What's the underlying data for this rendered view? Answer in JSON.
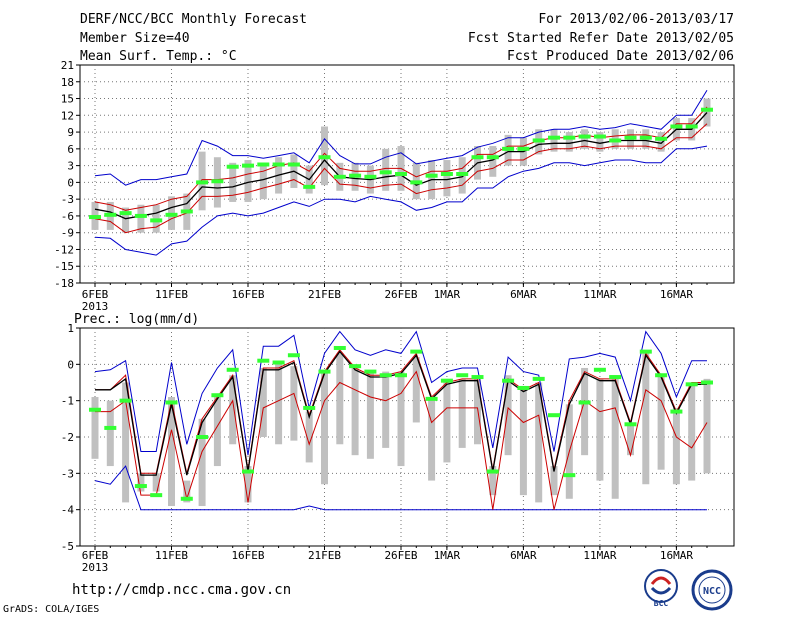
{
  "header": {
    "title": "DERF/NCC/BCC Monthly Forecast",
    "member_size": "Member Size=40",
    "variable": "Mean Surf. Temp.: °C",
    "period": "For 2013/02/06-2013/03/17",
    "refer_date": "Fcst Started Refer Date 2013/02/05",
    "produced_date": "Fcst Produced Date 2013/02/06"
  },
  "footer": {
    "url": "http://cmdp.ncc.cma.gov.cn",
    "credit": "GrADS: COLA/IGES",
    "logo1": "BCC",
    "logo2": "NCC"
  },
  "chart_data": [
    {
      "type": "line",
      "title": "Mean Surf. Temp.: °C",
      "xlabel": "",
      "ylabel": "°C",
      "ylim": [
        -18,
        21
      ],
      "yticks": [
        -18,
        -15,
        -12,
        -9,
        -6,
        -3,
        0,
        3,
        6,
        9,
        12,
        15,
        18,
        21
      ],
      "xtick_labels": [
        "6FEB",
        "11FEB",
        "16FEB",
        "21FEB",
        "26FEB",
        "1MAR",
        "6MAR",
        "11MAR",
        "16MAR"
      ],
      "xtick_days": [
        0,
        5,
        10,
        15,
        20,
        23,
        28,
        33,
        38
      ],
      "year_label": "2013",
      "series": [
        {
          "name": "max",
          "color": "#0000cc",
          "values": [
            1.2,
            1.5,
            -0.5,
            0.5,
            0.5,
            1,
            1.5,
            7.5,
            6.5,
            4.8,
            4.8,
            4.3,
            4.8,
            5.3,
            3.5,
            7.8,
            4.8,
            3.3,
            3.3,
            4.5,
            5.3,
            3.3,
            3.8,
            4.3,
            4.8,
            6.3,
            7,
            8,
            8,
            9,
            9.5,
            9.5,
            10,
            9.5,
            9.8,
            10.5,
            10,
            9.5,
            12,
            12,
            16.5
          ]
        },
        {
          "name": "upper",
          "color": "#cc0000",
          "values": [
            -3.5,
            -4,
            -5,
            -4.5,
            -4,
            -3,
            -2.5,
            0.5,
            0.5,
            0.8,
            1.5,
            2,
            3,
            3.5,
            2,
            5.2,
            2.5,
            2,
            2,
            2.5,
            2.5,
            1,
            2,
            2,
            2.5,
            5,
            5,
            6.5,
            6.5,
            7.5,
            8,
            8,
            8.5,
            8,
            8.3,
            8.5,
            8.5,
            8,
            10.5,
            10.5,
            13.5
          ]
        },
        {
          "name": "mean",
          "color": "#000000",
          "values": [
            -4.8,
            -5.3,
            -6.5,
            -6,
            -5.5,
            -4.5,
            -3.8,
            -0.8,
            -1,
            -0.8,
            0,
            0.5,
            1.3,
            2,
            0.5,
            4,
            1,
            0.7,
            0.5,
            1,
            1.3,
            -0.5,
            0.5,
            0.5,
            1,
            3.5,
            4,
            5.5,
            5.5,
            6.8,
            7,
            7,
            7.5,
            7,
            7.5,
            7.5,
            7.5,
            7,
            9.5,
            9.5,
            12.5
          ]
        },
        {
          "name": "lower",
          "color": "#cc0000",
          "values": [
            -6.5,
            -7,
            -9,
            -8.3,
            -8,
            -6.5,
            -5.5,
            -2.5,
            -2.5,
            -2.3,
            -1.8,
            -1,
            -0.3,
            0.5,
            -1,
            2.5,
            -0.3,
            -0.5,
            -1,
            -0.5,
            -0.3,
            -2,
            -1.3,
            -1,
            -0.5,
            2,
            2.5,
            4,
            4,
            5.5,
            6,
            6,
            6.5,
            6,
            6.5,
            6.5,
            6.5,
            6,
            8,
            8,
            10.5
          ]
        },
        {
          "name": "min",
          "color": "#0000cc",
          "values": [
            -9.8,
            -10,
            -12,
            -12.5,
            -13,
            -11,
            -10.5,
            -8,
            -6,
            -5.5,
            -6,
            -5.5,
            -4.5,
            -3.5,
            -4.3,
            -3,
            -3,
            -3.5,
            -2.5,
            -3,
            -3.5,
            -5,
            -4.5,
            -3.5,
            -3.5,
            -1,
            -1,
            1,
            2,
            2.5,
            3.5,
            3.5,
            3,
            3.5,
            4,
            4,
            3.5,
            3.5,
            6,
            6,
            6.5
          ]
        },
        {
          "name": "bars",
          "color": "#c0c0c0",
          "low": [
            -8.5,
            -8.5,
            -9,
            -9,
            -9,
            -8.5,
            -8.5,
            -5,
            -4.5,
            -3.5,
            -3.5,
            -3,
            -2,
            -1,
            -2,
            -0.5,
            -1.5,
            -1.5,
            -2,
            -1.5,
            -1.5,
            -3,
            -3,
            -2.5,
            -2,
            0.5,
            1,
            3,
            3,
            5,
            5.5,
            5.5,
            6,
            5.5,
            6,
            6,
            6,
            5.5,
            7.5,
            7.5,
            10
          ],
          "high": [
            -3.5,
            -3.5,
            -4.5,
            -4,
            -4,
            -2.5,
            -2,
            5.5,
            4.5,
            3.5,
            4,
            3.5,
            4.5,
            5,
            3,
            10,
            3.5,
            3.5,
            3,
            6,
            6.5,
            3.5,
            4,
            4,
            4.5,
            6.5,
            6.5,
            8.5,
            8,
            9.5,
            9.5,
            9,
            9.5,
            9,
            9.5,
            9.5,
            9.5,
            9,
            11.5,
            11.5,
            15
          ]
        },
        {
          "name": "obs",
          "color": "#33ff33",
          "values": [
            -6.2,
            -5.8,
            -5.5,
            -6,
            -6.8,
            -5.8,
            -5.2,
            0,
            0.2,
            2.8,
            3,
            3.2,
            3.2,
            3.2,
            -0.8,
            4.5,
            1,
            1.2,
            1,
            1.8,
            1.5,
            0,
            1.2,
            1.5,
            1.5,
            4.5,
            4.5,
            6,
            6,
            7.5,
            8,
            8,
            8.2,
            8.2,
            7.5,
            8,
            8,
            7.8,
            10,
            10,
            13
          ]
        }
      ]
    },
    {
      "type": "line",
      "title": "Prec.: log(mm/d)",
      "xlabel": "",
      "ylabel": "log(mm/d)",
      "ylim": [
        -5,
        1
      ],
      "yticks": [
        -5,
        -4,
        -3,
        -2,
        -1,
        0,
        1
      ],
      "xtick_labels": [
        "6FEB",
        "11FEB",
        "16FEB",
        "21FEB",
        "26FEB",
        "1MAR",
        "6MAR",
        "11MAR",
        "16MAR"
      ],
      "xtick_days": [
        0,
        5,
        10,
        15,
        20,
        23,
        28,
        33,
        38
      ],
      "year_label": "2013",
      "series": [
        {
          "name": "max",
          "color": "#0000cc",
          "values": [
            -0.2,
            -0.15,
            0.1,
            -2.4,
            -2.4,
            0.05,
            -2.2,
            -0.8,
            -0.1,
            0.4,
            -2.5,
            0.5,
            0.5,
            0.8,
            -1.2,
            0.3,
            0.9,
            0.4,
            0.25,
            0.4,
            0.3,
            0.9,
            -0.5,
            -0.2,
            -0.1,
            -0.1,
            -2.3,
            0.2,
            -0.2,
            -0.3,
            -2.4,
            0.15,
            0.2,
            0.3,
            0.2,
            -1.0,
            0.9,
            0.3,
            -0.9,
            0.1,
            0.1
          ]
        },
        {
          "name": "upper",
          "color": "#cc0000",
          "values": [
            -0.7,
            -0.7,
            -0.3,
            -3.0,
            -3.0,
            -1.0,
            -3.0,
            -1.5,
            -0.9,
            -0.3,
            -2.9,
            -0.1,
            -0.1,
            0.1,
            -1.4,
            -0.2,
            0.4,
            -0.1,
            -0.3,
            -0.3,
            -0.2,
            0.3,
            -0.9,
            -0.5,
            -0.4,
            -0.4,
            -2.9,
            -0.4,
            -0.7,
            -0.5,
            -2.9,
            -1.0,
            -0.2,
            -0.4,
            -0.4,
            -1.6,
            0.3,
            -0.3,
            -1.3,
            -0.5,
            -0.5
          ]
        },
        {
          "name": "mean",
          "color": "#000000",
          "values": [
            -0.7,
            -0.7,
            -0.4,
            -3.05,
            -3.05,
            -1.1,
            -3.05,
            -1.6,
            -0.95,
            -0.35,
            -2.95,
            -0.15,
            -0.15,
            0.05,
            -1.45,
            -0.25,
            0.35,
            -0.15,
            -0.35,
            -0.35,
            -0.25,
            0.25,
            -0.95,
            -0.55,
            -0.45,
            -0.45,
            -2.95,
            -0.45,
            -0.75,
            -0.55,
            -2.95,
            -1.1,
            -0.25,
            -0.45,
            -0.45,
            -1.65,
            0.25,
            -0.35,
            -1.35,
            -0.55,
            -0.55
          ]
        },
        {
          "name": "lower",
          "color": "#cc0000",
          "values": [
            -1.3,
            -1.3,
            -1.0,
            -3.6,
            -3.6,
            -1.8,
            -3.7,
            -2.4,
            -1.7,
            -1.0,
            -3.8,
            -1.2,
            -1.0,
            -0.8,
            -2.2,
            -1.0,
            -0.5,
            -0.7,
            -0.9,
            -1.0,
            -0.8,
            -0.2,
            -1.6,
            -1.2,
            -1.2,
            -1.2,
            -4.0,
            -1.2,
            -1.6,
            -1.4,
            -4.0,
            -2.4,
            -1.0,
            -1.3,
            -1.2,
            -2.5,
            -0.7,
            -1.0,
            -2.0,
            -2.3,
            -1.6
          ]
        },
        {
          "name": "min",
          "color": "#0000cc",
          "values": [
            -3.2,
            -3.3,
            -2.8,
            -4.0,
            -4.0,
            -4.0,
            -4.0,
            -4.0,
            -4.0,
            -4.0,
            -4.0,
            -4.0,
            -4.0,
            -4.0,
            -3.9,
            -4.0,
            -4.0,
            -4.0,
            -4.0,
            -4.0,
            -4.0,
            -4.0,
            -4.0,
            -4.0,
            -4.0,
            -4.0,
            -4.0,
            -4.0,
            -4.0,
            -4.0,
            -4.0,
            -4.0,
            -4.0,
            -4.0,
            -4.0,
            -4.0,
            -4.0,
            -4.0,
            -4.0,
            -4.0,
            -4.0
          ]
        },
        {
          "name": "bars",
          "color": "#c0c0c0",
          "low": [
            -2.6,
            -2.8,
            -3.8,
            -3.5,
            -3.5,
            -3.9,
            -3.8,
            -3.9,
            -2.8,
            -2.2,
            -3.8,
            -2.0,
            -2.2,
            -2.1,
            -2.7,
            -3.3,
            -2.2,
            -2.5,
            -2.6,
            -2.3,
            -2.8,
            -1.6,
            -3.2,
            -2.7,
            -2.3,
            -2.2,
            -3.6,
            -2.5,
            -3.6,
            -3.8,
            -3.6,
            -3.7,
            -2.5,
            -3.2,
            -3.7,
            -2.5,
            -3.3,
            -2.9,
            -3.3,
            -3.2,
            -3.0
          ],
          "high": [
            -0.9,
            -1.0,
            -0.5,
            -3.0,
            -3.0,
            -0.9,
            -3.2,
            -1.5,
            -0.9,
            -0.3,
            -2.8,
            -0.1,
            0.05,
            -0.05,
            -1.3,
            -0.2,
            0.3,
            0.0,
            -0.2,
            -0.2,
            -0.2,
            0.2,
            -0.9,
            -0.5,
            -0.4,
            -0.4,
            -2.8,
            -0.3,
            -0.6,
            -0.5,
            -2.8,
            -1.1,
            -0.1,
            -0.4,
            -0.3,
            -1.6,
            0.3,
            -0.3,
            -1.2,
            -0.5,
            -0.4
          ]
        },
        {
          "name": "obs",
          "color": "#33ff33",
          "values": [
            -1.25,
            -1.75,
            -1.0,
            -3.35,
            -3.6,
            -1.05,
            -3.7,
            -2.0,
            -0.85,
            -0.15,
            -2.95,
            0.1,
            0.05,
            0.25,
            -1.2,
            -0.2,
            0.45,
            -0.05,
            -0.2,
            -0.3,
            -0.3,
            0.35,
            -0.95,
            -0.45,
            -0.3,
            -0.35,
            -2.95,
            -0.45,
            -0.65,
            -0.4,
            -1.4,
            -3.05,
            -1.05,
            -0.15,
            -0.35,
            -1.65,
            0.35,
            -0.3,
            -1.3,
            -0.55,
            -0.5
          ]
        }
      ]
    }
  ]
}
